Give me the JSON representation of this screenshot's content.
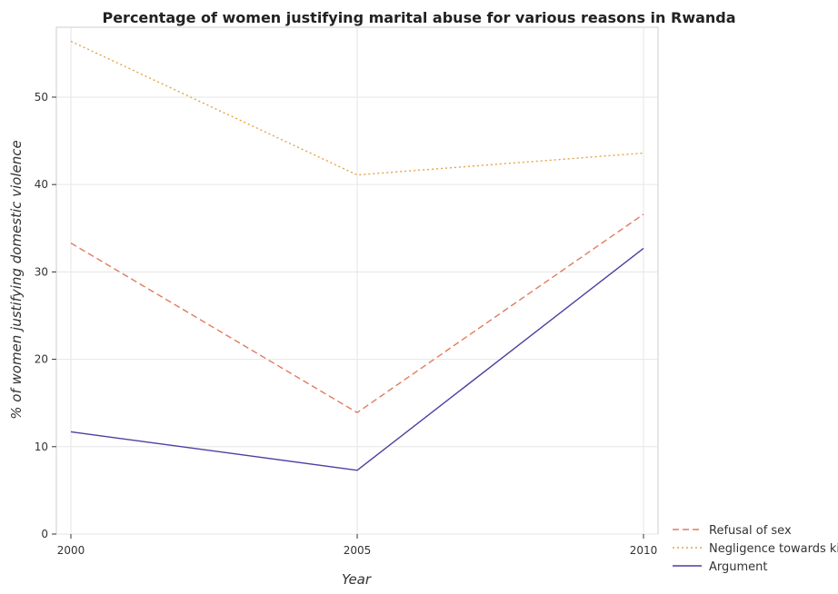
{
  "chart_data": {
    "type": "line",
    "title": "Percentage of women justifying marital abuse for various reasons in Rwanda",
    "xlabel": "Year",
    "ylabel": "% of women justifying domestic violence",
    "categories": [
      "2000",
      "2005",
      "2010"
    ],
    "ylim": [
      0,
      58
    ],
    "yticks": [
      0,
      10,
      20,
      30,
      40,
      50
    ],
    "grid": true,
    "legend_position": "bottom-right",
    "series": [
      {
        "name": "Refusal of sex",
        "values": [
          33.3,
          13.9,
          36.6
        ],
        "color": "#e07b5f",
        "dash": "dashed"
      },
      {
        "name": "Negligence towards kids",
        "values": [
          56.4,
          41.1,
          43.6
        ],
        "color": "#e3a34a",
        "dash": "dotted"
      },
      {
        "name": "Argument",
        "values": [
          11.7,
          7.3,
          32.7
        ],
        "color": "#4b3fa0",
        "dash": "solid"
      }
    ]
  }
}
